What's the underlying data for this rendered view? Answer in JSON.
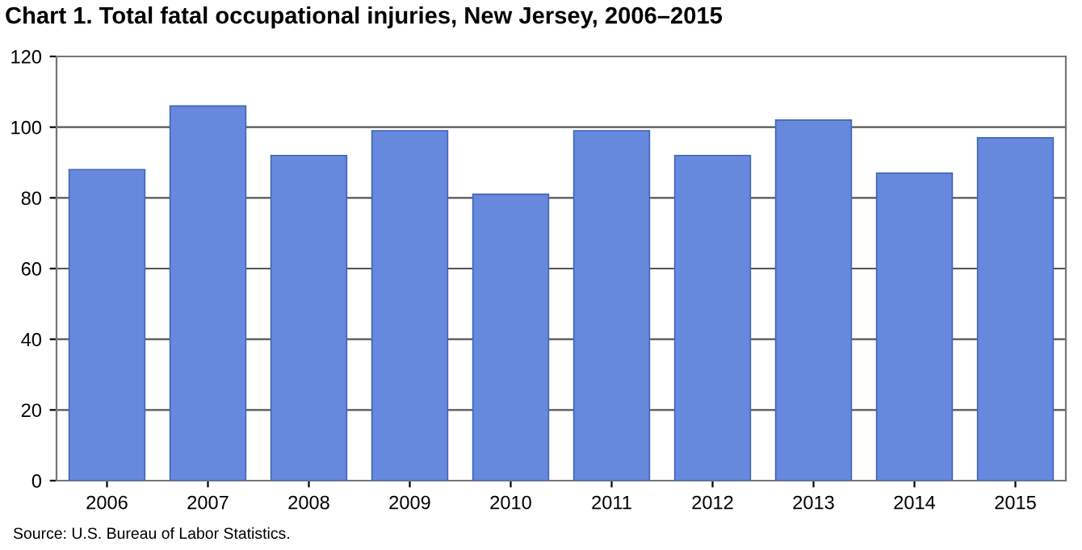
{
  "chart_data": {
    "type": "bar",
    "title": "Chart 1. Total fatal occupational injuries, New Jersey, 2006–2015",
    "categories": [
      "2006",
      "2007",
      "2008",
      "2009",
      "2010",
      "2011",
      "2012",
      "2013",
      "2014",
      "2015"
    ],
    "values": [
      88,
      106,
      92,
      99,
      81,
      99,
      92,
      102,
      87,
      97
    ],
    "color": "#6688dd",
    "ylim": [
      0,
      120
    ],
    "yticks": [
      0,
      20,
      40,
      60,
      80,
      100,
      120
    ],
    "grid": "y",
    "annotations": [
      "Source: U.S. Bureau of Labor Statistics."
    ]
  }
}
